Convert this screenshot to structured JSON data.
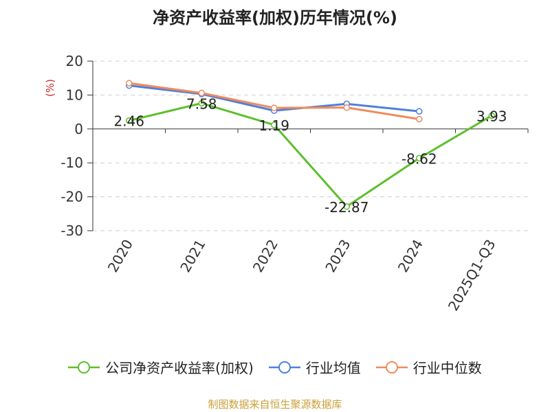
{
  "chart_data": {
    "type": "line",
    "title": "净资产收益率(加权)历年情况(%)",
    "ylabel": "(%)",
    "xlabel": "",
    "categories": [
      "2020",
      "2021",
      "2022",
      "2023",
      "2024",
      "2025Q1-Q3"
    ],
    "ylim": [
      -30,
      20
    ],
    "yticks": [
      20,
      10,
      0,
      -10,
      -20,
      -30
    ],
    "grid": true,
    "legend_position": "bottom",
    "series": [
      {
        "name": "公司净资产收益率(加权)",
        "color": "#5cbf2a",
        "values": [
          2.46,
          7.58,
          1.19,
          -22.87,
          -8.62,
          3.93
        ],
        "labels": [
          "2.46",
          "7.58",
          "1.19",
          "-22.87",
          "-8.62",
          "3.93"
        ]
      },
      {
        "name": "行业均值",
        "color": "#4f7fd9",
        "values": [
          12.8,
          10.3,
          5.4,
          7.4,
          5.2,
          null
        ]
      },
      {
        "name": "行业中位数",
        "color": "#f08a5d",
        "values": [
          13.5,
          10.6,
          6.2,
          6.3,
          2.9,
          null
        ]
      }
    ]
  },
  "footer": {
    "source": "制图数据来自恒生聚源数据库"
  }
}
